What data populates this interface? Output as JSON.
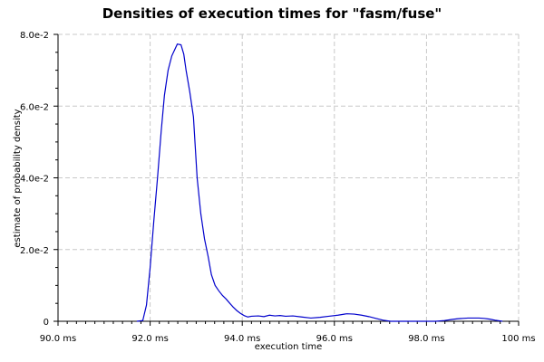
{
  "chart_data": {
    "type": "line",
    "title": "Densities of execution times for \"fasm/fuse\"",
    "xlabel": "execution time",
    "ylabel": "estimate of probability density",
    "xlim": [
      90.0,
      100.0
    ],
    "ylim": [
      0,
      0.08
    ],
    "x_ticks": [
      {
        "value": 90,
        "label": "90.0 ms"
      },
      {
        "value": 92,
        "label": "92.0 ms"
      },
      {
        "value": 94,
        "label": "94.0 ms"
      },
      {
        "value": 96,
        "label": "96.0 ms"
      },
      {
        "value": 98,
        "label": "98.0 ms"
      },
      {
        "value": 100,
        "label": "100 ms"
      }
    ],
    "y_ticks": [
      {
        "value": 0,
        "label": "0"
      },
      {
        "value": 0.02,
        "label": "2.0e-2"
      },
      {
        "value": 0.04,
        "label": "4.0e-2"
      },
      {
        "value": 0.06,
        "label": "6.0e-2"
      },
      {
        "value": 0.08,
        "label": "8.0e-2"
      }
    ],
    "grid": true,
    "line_color": "#0000cc",
    "series": [
      {
        "x": [
          91.71,
          91.84,
          91.92,
          92.0,
          92.08,
          92.16,
          92.24,
          92.31,
          92.39,
          92.47,
          92.59,
          92.67,
          92.73,
          92.78,
          92.86,
          92.94,
          93.02,
          93.1,
          93.18,
          93.26,
          93.33,
          93.41,
          93.49,
          93.57,
          93.65,
          93.73,
          93.8,
          93.88,
          93.96,
          94.04,
          94.12,
          94.2,
          94.35,
          94.47,
          94.59,
          94.71,
          94.82,
          94.94,
          95.1,
          95.29,
          95.49,
          95.69,
          95.88,
          96.08,
          96.27,
          96.43,
          96.59,
          96.75,
          96.9,
          97.06,
          97.22,
          97.41,
          97.61,
          97.8,
          98.0,
          98.2,
          98.39,
          98.55,
          98.67,
          98.78,
          98.9,
          99.02,
          99.14,
          99.25,
          99.37,
          99.49,
          99.65
        ],
        "y": [
          0.0,
          0.0002,
          0.0045,
          0.015,
          0.028,
          0.04,
          0.053,
          0.063,
          0.07,
          0.074,
          0.0773,
          0.0771,
          0.0745,
          0.07,
          0.064,
          0.057,
          0.04,
          0.03,
          0.023,
          0.018,
          0.013,
          0.01,
          0.0085,
          0.0072,
          0.0062,
          0.005,
          0.004,
          0.003,
          0.0022,
          0.0016,
          0.0012,
          0.0014,
          0.0015,
          0.0013,
          0.0017,
          0.0015,
          0.0016,
          0.0014,
          0.0015,
          0.0012,
          0.0009,
          0.0011,
          0.0014,
          0.0017,
          0.0021,
          0.002,
          0.0017,
          0.0013,
          0.0008,
          0.0003,
          0.0,
          0.0,
          0.0,
          0.0,
          0.0,
          0.0,
          0.0002,
          0.0005,
          0.0007,
          0.0008,
          0.0009,
          0.0009,
          0.0009,
          0.0008,
          0.0006,
          0.0003,
          0.0
        ]
      }
    ]
  }
}
